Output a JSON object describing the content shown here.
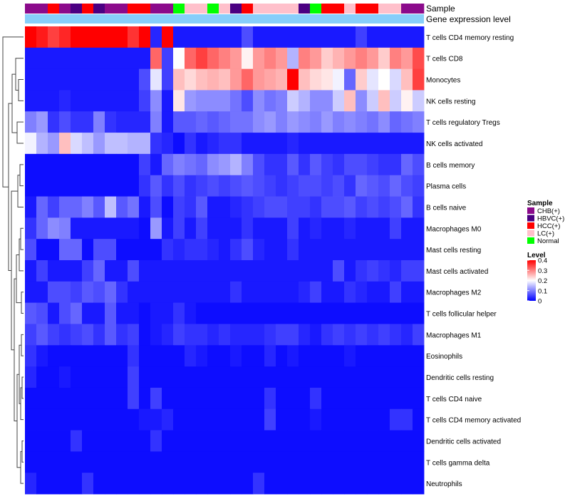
{
  "chart_data": {
    "type": "heatmap",
    "annotation_rows": [
      "Sample",
      "Gene expression level"
    ],
    "rows": [
      "T cells CD4 memory resting",
      "T cells CD8",
      "Monocytes",
      "NK cells resting",
      "T cells regulatory  Tregs",
      "NK cells activated",
      "B cells memory",
      "Plasma cells",
      "B cells naive",
      "Macrophages M0",
      "Mast cells resting",
      "Mast cells activated",
      "Macrophages M2",
      "T cells follicular helper",
      "Macrophages M1",
      "Eosinophils",
      "Dendritic cells resting",
      "T cells CD4 naive",
      "T cells CD4 memory activated",
      "Dendritic cells activated",
      "T cells gamma delta",
      "Neutrophils"
    ],
    "sample_groups": [
      "CHB(+)",
      "CHB(+)",
      "HCC(+)",
      "CHB(+)",
      "HBVC(+)",
      "HCC(+)",
      "HBVC(+)",
      "CHB(+)",
      "CHB(+)",
      "HCC(+)",
      "HCC(+)",
      "CHB(+)",
      "CHB(+)",
      "Normal",
      "LC(+)",
      "LC(+)",
      "Normal",
      "LC(+)",
      "HBVC(+)",
      "HCC(+)",
      "LC(+)",
      "LC(+)",
      "LC(+)",
      "LC(+)",
      "HBVC(+)",
      "Normal",
      "HCC(+)",
      "HCC(+)",
      "LC(+)",
      "HCC(+)",
      "HCC(+)",
      "LC(+)",
      "LC(+)",
      "CHB(+)",
      "CHB(+)"
    ],
    "values": [
      [
        0.4,
        0.38,
        0.35,
        0.37,
        0.4,
        0.4,
        0.4,
        0.4,
        0.4,
        0.36,
        0.4,
        0.03,
        0.4,
        0.02,
        0.02,
        0.02,
        0.02,
        0.02,
        0.02,
        0.06,
        0.02,
        0.02,
        0.02,
        0.02,
        0.02,
        0.02,
        0.02,
        0.02,
        0.02,
        0.05,
        0.02,
        0.02,
        0.02,
        0.02,
        0.02
      ],
      [
        0.02,
        0.02,
        0.02,
        0.02,
        0.02,
        0.02,
        0.02,
        0.02,
        0.02,
        0.02,
        0.02,
        0.32,
        0.05,
        0.2,
        0.32,
        0.35,
        0.32,
        0.3,
        0.28,
        0.21,
        0.28,
        0.3,
        0.28,
        0.14,
        0.3,
        0.28,
        0.24,
        0.26,
        0.28,
        0.3,
        0.28,
        0.24,
        0.3,
        0.28,
        0.34
      ],
      [
        0.02,
        0.02,
        0.02,
        0.02,
        0.02,
        0.02,
        0.02,
        0.02,
        0.02,
        0.02,
        0.06,
        0.18,
        0.05,
        0.25,
        0.23,
        0.25,
        0.26,
        0.25,
        0.28,
        0.32,
        0.28,
        0.27,
        0.26,
        0.4,
        0.25,
        0.23,
        0.22,
        0.19,
        0.08,
        0.24,
        0.18,
        0.2,
        0.17,
        0.25,
        0.35
      ],
      [
        0.02,
        0.02,
        0.02,
        0.03,
        0.02,
        0.02,
        0.02,
        0.02,
        0.02,
        0.02,
        0.05,
        0.11,
        0.02,
        0.22,
        0.12,
        0.11,
        0.11,
        0.11,
        0.09,
        0.06,
        0.11,
        0.09,
        0.1,
        0.16,
        0.14,
        0.11,
        0.11,
        0.16,
        0.25,
        0.11,
        0.16,
        0.25,
        0.16,
        0.21,
        0.16
      ],
      [
        0.1,
        0.12,
        0.04,
        0.06,
        0.04,
        0.04,
        0.1,
        0.04,
        0.03,
        0.03,
        0.03,
        0.1,
        0.02,
        0.07,
        0.07,
        0.08,
        0.07,
        0.08,
        0.09,
        0.09,
        0.11,
        0.12,
        0.1,
        0.12,
        0.11,
        0.1,
        0.12,
        0.1,
        0.11,
        0.1,
        0.09,
        0.11,
        0.08,
        0.09,
        0.1
      ],
      [
        0.19,
        0.14,
        0.12,
        0.25,
        0.17,
        0.15,
        0.12,
        0.15,
        0.15,
        0.14,
        0.14,
        0.04,
        0.03,
        0.01,
        0.04,
        0.02,
        0.03,
        0.04,
        0.04,
        0.02,
        0.02,
        0.02,
        0.02,
        0.03,
        0.02,
        0.02,
        0.02,
        0.02,
        0.02,
        0.02,
        0.02,
        0.02,
        0.02,
        0.02,
        0.02
      ],
      [
        0.01,
        0.01,
        0.01,
        0.01,
        0.01,
        0.01,
        0.01,
        0.01,
        0.01,
        0.01,
        0.05,
        0.02,
        0.08,
        0.1,
        0.09,
        0.08,
        0.11,
        0.12,
        0.14,
        0.1,
        0.06,
        0.04,
        0.04,
        0.07,
        0.04,
        0.07,
        0.05,
        0.04,
        0.06,
        0.06,
        0.05,
        0.04,
        0.04,
        0.08,
        0.06
      ],
      [
        0.01,
        0.01,
        0.01,
        0.01,
        0.01,
        0.01,
        0.01,
        0.01,
        0.01,
        0.01,
        0.04,
        0.07,
        0.04,
        0.06,
        0.04,
        0.05,
        0.06,
        0.05,
        0.06,
        0.07,
        0.06,
        0.05,
        0.04,
        0.05,
        0.06,
        0.06,
        0.05,
        0.06,
        0.04,
        0.08,
        0.07,
        0.06,
        0.08,
        0.06,
        0.05
      ],
      [
        0.02,
        0.08,
        0.05,
        0.08,
        0.08,
        0.1,
        0.07,
        0.15,
        0.07,
        0.09,
        0.02,
        0.06,
        0.01,
        0.05,
        0.04,
        0.07,
        0.02,
        0.02,
        0.03,
        0.04,
        0.05,
        0.06,
        0.06,
        0.05,
        0.05,
        0.04,
        0.06,
        0.06,
        0.07,
        0.05,
        0.06,
        0.05,
        0.06,
        0.08,
        0.04
      ],
      [
        0.04,
        0.08,
        0.11,
        0.1,
        0.02,
        0.02,
        0.02,
        0.02,
        0.02,
        0.02,
        0.01,
        0.12,
        0.02,
        0.05,
        0.02,
        0.05,
        0.02,
        0.02,
        0.02,
        0.04,
        0.02,
        0.02,
        0.02,
        0.05,
        0.02,
        0.03,
        0.02,
        0.02,
        0.03,
        0.02,
        0.02,
        0.02,
        0.05,
        0.02,
        0.02
      ],
      [
        0.06,
        0.01,
        0.01,
        0.08,
        0.08,
        0.01,
        0.06,
        0.06,
        0.01,
        0.01,
        0.01,
        0.01,
        0.04,
        0.03,
        0.04,
        0.04,
        0.03,
        0.02,
        0.04,
        0.06,
        0.03,
        0.02,
        0.02,
        0.04,
        0.02,
        0.02,
        0.02,
        0.02,
        0.02,
        0.02,
        0.02,
        0.02,
        0.02,
        0.02,
        0.02
      ],
      [
        0.02,
        0.05,
        0.02,
        0.02,
        0.02,
        0.05,
        0.08,
        0.02,
        0.02,
        0.06,
        0.02,
        0.02,
        0.02,
        0.02,
        0.02,
        0.02,
        0.02,
        0.02,
        0.02,
        0.02,
        0.02,
        0.02,
        0.02,
        0.02,
        0.02,
        0.02,
        0.02,
        0.06,
        0.02,
        0.04,
        0.05,
        0.04,
        0.03,
        0.05,
        0.05
      ],
      [
        0.02,
        0.02,
        0.06,
        0.06,
        0.05,
        0.07,
        0.06,
        0.08,
        0.04,
        0.02,
        0.02,
        0.02,
        0.02,
        0.02,
        0.02,
        0.02,
        0.02,
        0.02,
        0.04,
        0.02,
        0.02,
        0.02,
        0.02,
        0.02,
        0.03,
        0.05,
        0.02,
        0.02,
        0.04,
        0.03,
        0.02,
        0.02,
        0.05,
        0.02,
        0.02
      ],
      [
        0.07,
        0.06,
        0.02,
        0.06,
        0.08,
        0.02,
        0.02,
        0.07,
        0.02,
        0.02,
        0.01,
        0.02,
        0.02,
        0.04,
        0.02,
        0.01,
        0.01,
        0.01,
        0.01,
        0.01,
        0.01,
        0.01,
        0.01,
        0.01,
        0.01,
        0.01,
        0.01,
        0.01,
        0.01,
        0.01,
        0.01,
        0.01,
        0.01,
        0.01,
        0.01
      ],
      [
        0.05,
        0.07,
        0.05,
        0.04,
        0.05,
        0.06,
        0.04,
        0.07,
        0.04,
        0.05,
        0.01,
        0.02,
        0.03,
        0.05,
        0.04,
        0.04,
        0.03,
        0.04,
        0.03,
        0.03,
        0.03,
        0.04,
        0.05,
        0.05,
        0.03,
        0.02,
        0.04,
        0.05,
        0.04,
        0.05,
        0.04,
        0.05,
        0.04,
        0.03,
        0.05
      ],
      [
        0.04,
        0.02,
        0.01,
        0.01,
        0.01,
        0.01,
        0.01,
        0.01,
        0.01,
        0.04,
        0.01,
        0.01,
        0.01,
        0.01,
        0.03,
        0.02,
        0.01,
        0.01,
        0.02,
        0.01,
        0.01,
        0.03,
        0.01,
        0.02,
        0.01,
        0.01,
        0.01,
        0.01,
        0.02,
        0.01,
        0.01,
        0.01,
        0.01,
        0.01,
        0.01
      ],
      [
        0.03,
        0.01,
        0.01,
        0.02,
        0.01,
        0.01,
        0.01,
        0.01,
        0.01,
        0.05,
        0.01,
        0.01,
        0.01,
        0.01,
        0.01,
        0.01,
        0.01,
        0.01,
        0.01,
        0.01,
        0.01,
        0.01,
        0.01,
        0.01,
        0.01,
        0.01,
        0.01,
        0.01,
        0.01,
        0.01,
        0.01,
        0.01,
        0.01,
        0.01,
        0.01
      ],
      [
        0.01,
        0.01,
        0.01,
        0.01,
        0.01,
        0.01,
        0.01,
        0.01,
        0.01,
        0.05,
        0.01,
        0.05,
        0.01,
        0.01,
        0.01,
        0.01,
        0.01,
        0.01,
        0.01,
        0.01,
        0.01,
        0.04,
        0.01,
        0.01,
        0.01,
        0.04,
        0.01,
        0.01,
        0.01,
        0.01,
        0.01,
        0.01,
        0.01,
        0.01,
        0.01
      ],
      [
        0.01,
        0.01,
        0.01,
        0.01,
        0.01,
        0.01,
        0.01,
        0.01,
        0.01,
        0.01,
        0.02,
        0.02,
        0.03,
        0.01,
        0.01,
        0.01,
        0.01,
        0.01,
        0.01,
        0.01,
        0.01,
        0.05,
        0.01,
        0.01,
        0.01,
        0.02,
        0.01,
        0.01,
        0.01,
        0.01,
        0.01,
        0.01,
        0.04,
        0.04,
        0.01
      ],
      [
        0.01,
        0.01,
        0.01,
        0.01,
        0.04,
        0.01,
        0.01,
        0.01,
        0.01,
        0.01,
        0.01,
        0.04,
        0.01,
        0.01,
        0.01,
        0.01,
        0.01,
        0.01,
        0.01,
        0.01,
        0.01,
        0.01,
        0.01,
        0.01,
        0.01,
        0.01,
        0.01,
        0.01,
        0.01,
        0.01,
        0.01,
        0.01,
        0.01,
        0.01,
        0.01
      ],
      [
        0.01,
        0.01,
        0.01,
        0.01,
        0.01,
        0.01,
        0.01,
        0.01,
        0.01,
        0.01,
        0.01,
        0.01,
        0.01,
        0.01,
        0.01,
        0.01,
        0.01,
        0.01,
        0.01,
        0.01,
        0.01,
        0.01,
        0.01,
        0.01,
        0.01,
        0.01,
        0.01,
        0.01,
        0.01,
        0.01,
        0.01,
        0.01,
        0.01,
        0.01,
        0.01
      ],
      [
        0.03,
        0.01,
        0.01,
        0.01,
        0.01,
        0.04,
        0.01,
        0.01,
        0.01,
        0.01,
        0.01,
        0.01,
        0.01,
        0.01,
        0.01,
        0.01,
        0.01,
        0.01,
        0.01,
        0.01,
        0.04,
        0.01,
        0.01,
        0.01,
        0.01,
        0.01,
        0.01,
        0.01,
        0.01,
        0.01,
        0.01,
        0.01,
        0.01,
        0.01,
        0.01
      ]
    ],
    "color_scale": {
      "stops": [
        0,
        0.2,
        0.4
      ],
      "colors": [
        "#0000ff",
        "#ffffff",
        "#ff0000"
      ]
    },
    "sample_colors": {
      "CHB(+)": "#8b0a8b",
      "HBVC(+)": "#4b0082",
      "HCC(+)": "#ff0000",
      "LC(+)": "#ffc0cb",
      "Normal": "#00ff00"
    },
    "gene_expression_color": "#87cefa",
    "legend": {
      "sample_title": "Sample",
      "sample_entries": [
        "CHB(+)",
        "HBVC(+)",
        "HCC(+)",
        "LC(+)",
        "Normal"
      ],
      "level_title": "Level",
      "level_ticks": [
        0.4,
        0.3,
        0.2,
        0.1,
        0
      ],
      "level_tick_labels": [
        "0.4",
        "0.3",
        "0.2",
        "0.1",
        "0"
      ]
    }
  }
}
